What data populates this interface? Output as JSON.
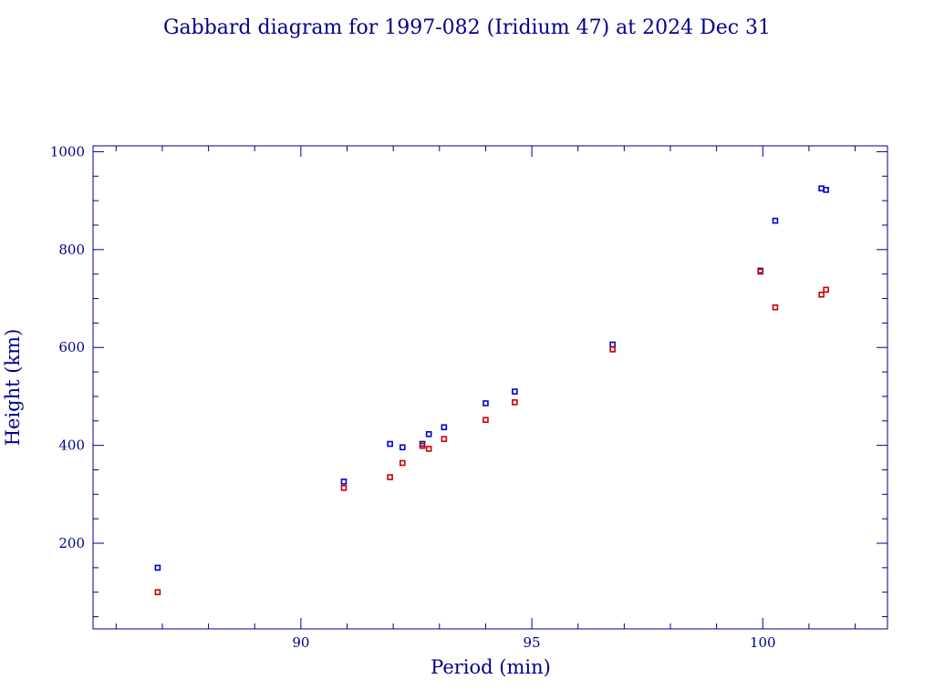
{
  "chart_data": {
    "type": "scatter",
    "title": "Gabbard diagram for 1997-082 (Iridium 47) at 2024 Dec 31",
    "xlabel": "Period (min)",
    "ylabel": "Height (km)",
    "xlim": [
      85.5,
      102.7
    ],
    "ylim": [
      25,
      1012
    ],
    "xticks_major": [
      90,
      95,
      100
    ],
    "xticks_minor": [
      86,
      87,
      88,
      89,
      91,
      92,
      93,
      94,
      96,
      97,
      98,
      99,
      101,
      102
    ],
    "yticks_major": [
      200,
      400,
      600,
      800,
      1000
    ],
    "yticks_minor": [
      50,
      100,
      150,
      250,
      300,
      350,
      450,
      500,
      550,
      650,
      700,
      750,
      850,
      900,
      950
    ],
    "grid": false,
    "series": [
      {
        "color": "#0000cc",
        "x": [
          86.9,
          90.93,
          91.93,
          92.2,
          92.63,
          92.77,
          93.1,
          94.0,
          94.63,
          96.75,
          99.95,
          100.27,
          101.27,
          101.37
        ],
        "y": [
          150,
          326,
          403,
          396,
          403,
          423,
          437,
          486,
          510,
          606,
          757,
          859,
          925,
          922
        ]
      },
      {
        "color": "#cc0000",
        "x": [
          86.9,
          90.93,
          91.93,
          92.2,
          92.63,
          92.77,
          93.1,
          94.0,
          94.63,
          96.75,
          99.95,
          100.27,
          101.27,
          101.37
        ],
        "y": [
          100,
          313,
          335,
          364,
          399,
          393,
          413,
          452,
          488,
          596,
          755,
          682,
          708,
          718
        ]
      }
    ]
  }
}
